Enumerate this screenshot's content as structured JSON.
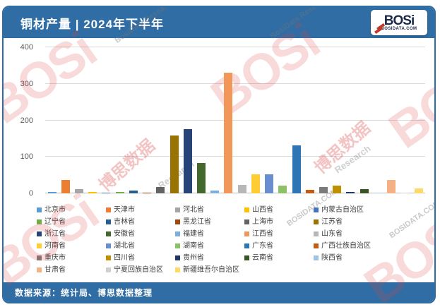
{
  "header": {
    "title": "铜材产量 | 2024年下半年",
    "logo": {
      "text": "BOSi",
      "subtext": "BOSIDATA.COM"
    }
  },
  "footer": {
    "source_label": "数据来源：统计局、博思数据整理"
  },
  "watermarks": {
    "logo_text": "BOSi",
    "cn_text": "博思数据",
    "research_text": "BosiData Research",
    "research_short": "Research",
    "domain_text": "BOSIDATA.COM"
  },
  "colors": {
    "header_bg": "#2F6DA4",
    "border": "#2E6DA4",
    "gridline": "#D9D9D9",
    "axis_text": "#595959",
    "legend_text": "#404040"
  },
  "chart_data": {
    "type": "bar",
    "title": "铜材产量 | 2024年下半年",
    "xlabel": "",
    "ylabel": "",
    "ylim": [
      0,
      400
    ],
    "yticks": [
      0,
      100,
      200,
      300,
      400
    ],
    "grid": true,
    "legend_position": "bottom",
    "categories": [
      "北京市",
      "天津市",
      "河北省",
      "山西省",
      "内蒙古自治区",
      "辽宁省",
      "吉林省",
      "黑龙江省",
      "上海市",
      "江苏省",
      "浙江省",
      "安徽省",
      "福建省",
      "江西省",
      "山东省",
      "河南省",
      "湖北省",
      "湖南省",
      "广东省",
      "广西壮族自治区",
      "重庆市",
      "四川省",
      "贵州省",
      "云南省",
      "陕西省",
      "甘肃省",
      "宁夏回族自治区",
      "新疆维吾尔自治区"
    ],
    "values": [
      3,
      37,
      11,
      4,
      2,
      3,
      7,
      2,
      17,
      159,
      176,
      84,
      7,
      330,
      24,
      52,
      53,
      22,
      131,
      9,
      18,
      22,
      3,
      12,
      2,
      37,
      2,
      14
    ],
    "colors": [
      "#5B9BD5",
      "#ED7D31",
      "#A5A5A5",
      "#FFC000",
      "#4472C4",
      "#70AD47",
      "#255E91",
      "#9E480E",
      "#636363",
      "#997300",
      "#264478",
      "#43682B",
      "#7CAFDD",
      "#F1975A",
      "#B7B7B7",
      "#FFCD33",
      "#698ED0",
      "#8CC168",
      "#2E75B6",
      "#C55A11",
      "#7B7B7B",
      "#BF8F00",
      "#1F3864",
      "#375623",
      "#9DC3E6",
      "#F4B183",
      "#D0CECE",
      "#FFD966"
    ]
  }
}
